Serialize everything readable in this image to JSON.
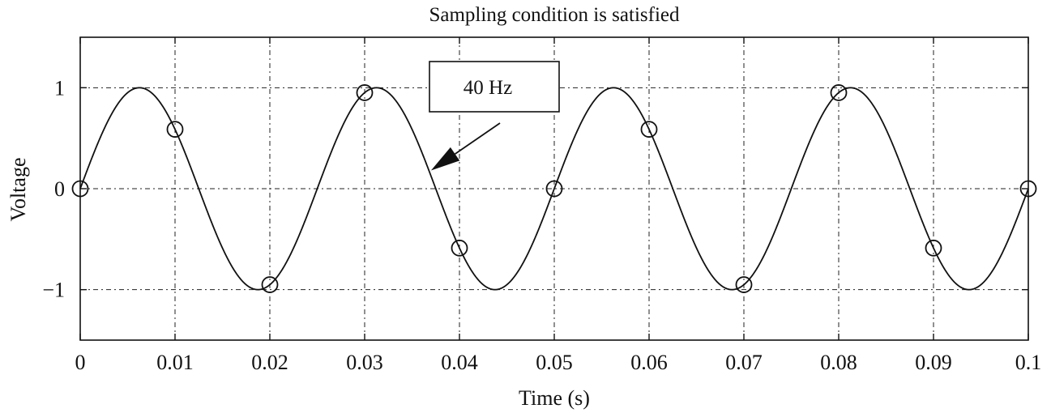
{
  "chart_data": {
    "type": "line",
    "title": "Sampling condition is satisfied",
    "xlabel": "Time (s)",
    "ylabel": "Voltage",
    "xlim": [
      0,
      0.1
    ],
    "ylim": [
      -1.5,
      1.5
    ],
    "grid": true,
    "grid_style": "dash-dot",
    "x_ticks": [
      0,
      0.01,
      0.02,
      0.03,
      0.04,
      0.05,
      0.06,
      0.07,
      0.08,
      0.09,
      0.1
    ],
    "x_tick_labels": [
      "0",
      "0.01",
      "0.02",
      "0.03",
      "0.04",
      "0.05",
      "0.06",
      "0.07",
      "0.08",
      "0.09",
      "0.1"
    ],
    "y_ticks": [
      -1,
      0,
      1
    ],
    "y_tick_labels": [
      "−1",
      "0",
      "1"
    ],
    "series": [
      {
        "type": "line",
        "signal_frequency_hz": 40,
        "amplitude": 1,
        "color": "#111111"
      },
      {
        "type": "scatter",
        "marker": "open-circle",
        "color": "#111111",
        "x": [
          0,
          0.01,
          0.02,
          0.03,
          0.04,
          0.05,
          0.06,
          0.07,
          0.08,
          0.09,
          0.1
        ],
        "y": [
          0,
          0.588,
          -0.951,
          0.951,
          -0.588,
          0,
          0.588,
          -0.951,
          0.951,
          -0.588,
          0
        ]
      }
    ],
    "annotations": [
      {
        "text": "40 Hz",
        "boxed": true,
        "arrow_to": [
          0.037,
          0.18
        ]
      }
    ]
  }
}
